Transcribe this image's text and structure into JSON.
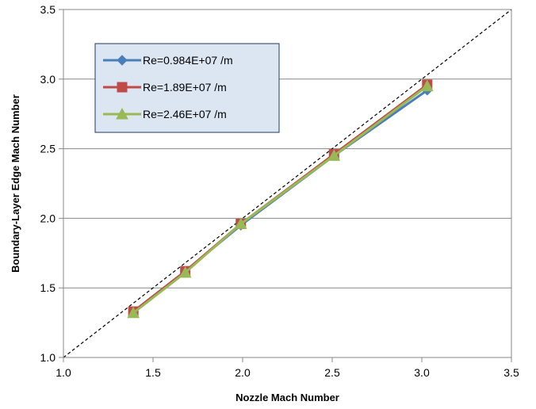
{
  "chart_data": {
    "type": "line",
    "title": "",
    "xlabel": "Nozzle Mach Number",
    "ylabel": "Boundary-Layer Edge Mach Number",
    "xlim": [
      1.0,
      3.5
    ],
    "ylim": [
      1.0,
      3.5
    ],
    "xticks": [
      "1.0",
      "1.5",
      "2.0",
      "2.5",
      "3.0",
      "3.5"
    ],
    "yticks": [
      "1.0",
      "1.5",
      "2.0",
      "2.5",
      "3.0",
      "3.5"
    ],
    "grid": "horizontal",
    "legend_position": "top-left",
    "reference_line": {
      "style": "dashed",
      "color": "#000000",
      "x": [
        1.0,
        3.5
      ],
      "y": [
        1.0,
        3.5
      ]
    },
    "series": [
      {
        "name": "Re=0.984E+07 /m",
        "color": "#4a7ebb",
        "marker": "diamond",
        "x": [
          1.39,
          1.68,
          1.99,
          2.51,
          3.03
        ],
        "y": [
          1.33,
          1.62,
          1.95,
          2.45,
          2.92
        ]
      },
      {
        "name": "Re=1.89E+07 /m",
        "color": "#be4b48",
        "marker": "square",
        "x": [
          1.39,
          1.68,
          1.99,
          2.51,
          3.03
        ],
        "y": [
          1.33,
          1.62,
          1.96,
          2.46,
          2.96
        ]
      },
      {
        "name": "Re=2.46E+07 /m",
        "color": "#98b954",
        "marker": "triangle",
        "x": [
          1.39,
          1.68,
          1.99,
          2.51,
          3.03
        ],
        "y": [
          1.32,
          1.61,
          1.96,
          2.45,
          2.95
        ]
      }
    ]
  }
}
